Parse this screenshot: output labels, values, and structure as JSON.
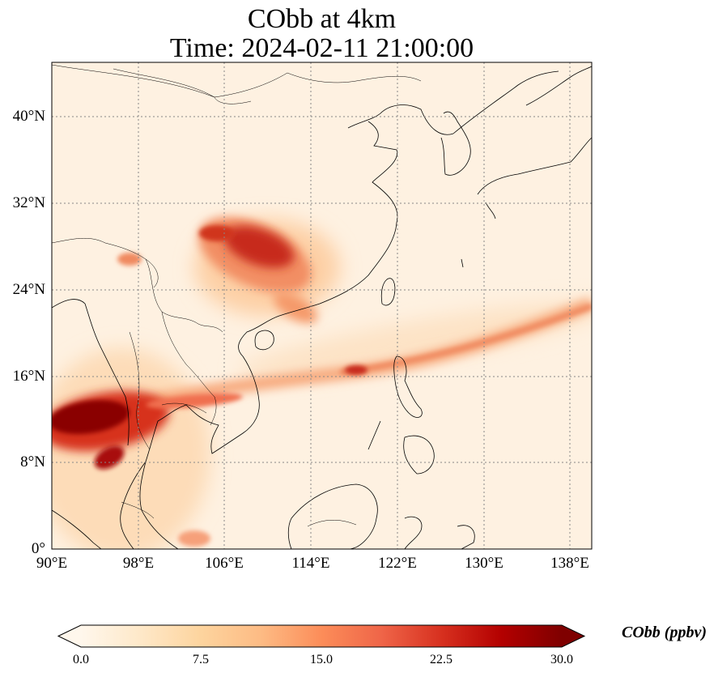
{
  "title": {
    "line1": "CObb at 4km",
    "line2": "Time: 2024-02-11 21:00:00"
  },
  "map": {
    "projection": "PlateCarree",
    "lon_range": [
      90,
      140
    ],
    "lat_range": [
      0,
      45
    ],
    "gridlines": "dotted gray",
    "lat_ticks": [
      "0°",
      "8°N",
      "16°N",
      "24°N",
      "32°N",
      "40°N"
    ],
    "lon_ticks": [
      "90°E",
      "98°E",
      "106°E",
      "114°E",
      "122°E",
      "130°E",
      "138°E"
    ],
    "features": [
      "coastlines",
      "country borders"
    ]
  },
  "colorbar": {
    "label": "CObb (ppbv)",
    "colormap": "OrRd",
    "range": [
      0,
      30
    ],
    "extend": "both",
    "ticks": [
      "0.0",
      "7.5",
      "15.0",
      "22.5",
      "30.0"
    ],
    "colors": [
      "#fff7ec",
      "#fee8c8",
      "#fdd49e",
      "#fdbb84",
      "#fc8d59",
      "#ef6548",
      "#d7301f",
      "#b30000",
      "#7f0000"
    ]
  }
}
